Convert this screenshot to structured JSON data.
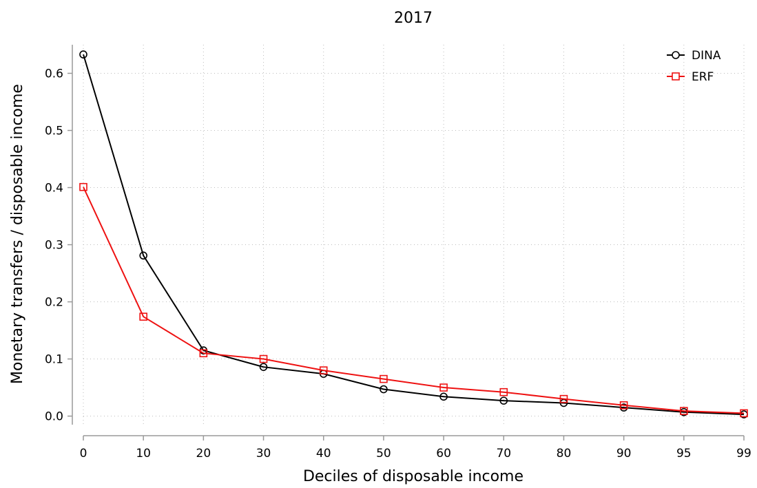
{
  "chart_data": {
    "type": "line",
    "title": "2017",
    "xlabel": "Deciles of disposable income",
    "ylabel": "Monetary transfers / disposable income",
    "categories": [
      "0",
      "10",
      "20",
      "30",
      "40",
      "50",
      "60",
      "70",
      "80",
      "90",
      "95",
      "99"
    ],
    "y_ticks": [
      "0.0",
      "0.1",
      "0.2",
      "0.3",
      "0.4",
      "0.5",
      "0.6"
    ],
    "ylim": [
      -0.015,
      0.65
    ],
    "grid": true,
    "legend_position": "top-right",
    "series": [
      {
        "name": "DINA",
        "color": "#000000",
        "marker": "circle",
        "values": [
          0.633,
          0.281,
          0.115,
          0.086,
          0.074,
          0.047,
          0.034,
          0.027,
          0.023,
          0.015,
          0.007,
          0.003
        ]
      },
      {
        "name": "ERF",
        "color": "#ee1111",
        "marker": "square",
        "values": [
          0.401,
          0.174,
          0.11,
          0.1,
          0.08,
          0.065,
          0.05,
          0.042,
          0.03,
          0.019,
          0.009,
          0.005
        ]
      }
    ]
  }
}
